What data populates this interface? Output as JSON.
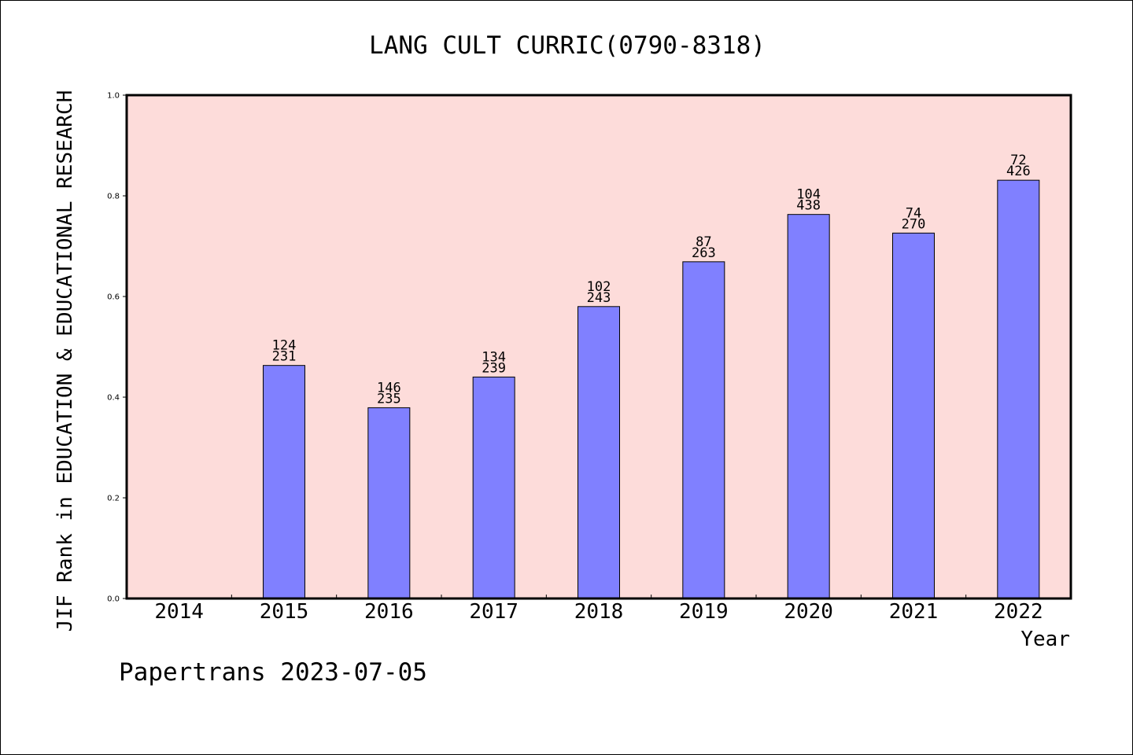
{
  "chart_data": {
    "type": "bar",
    "title": "LANG CULT CURRIC(0790-8318)",
    "xlabel": "Year",
    "ylabel": "JIF Rank in EDUCATION & EDUCATIONAL RESEARCH",
    "categories": [
      "2014",
      "2015",
      "2016",
      "2017",
      "2018",
      "2019",
      "2020",
      "2021",
      "2022"
    ],
    "values": [
      null,
      0.463,
      0.379,
      0.44,
      0.58,
      0.669,
      0.763,
      0.726,
      0.831
    ],
    "rank_labels": [
      "",
      "124",
      "146",
      "134",
      "102",
      "87",
      "104",
      "74",
      "72"
    ],
    "total_labels": [
      "",
      "231",
      "235",
      "239",
      "243",
      "263",
      "438",
      "270",
      "426"
    ],
    "ylim": [
      0,
      1.0
    ],
    "yticks": [
      "0.0",
      "0.2",
      "0.4",
      "0.6",
      "0.8",
      "1.0"
    ],
    "grid": false,
    "colors": {
      "plot_background": "#FDDCDA",
      "bar_fill": "#8080FF",
      "bar_stroke": "#000000"
    }
  },
  "footer": {
    "watermark": "Papertrans 2023-07-05"
  }
}
